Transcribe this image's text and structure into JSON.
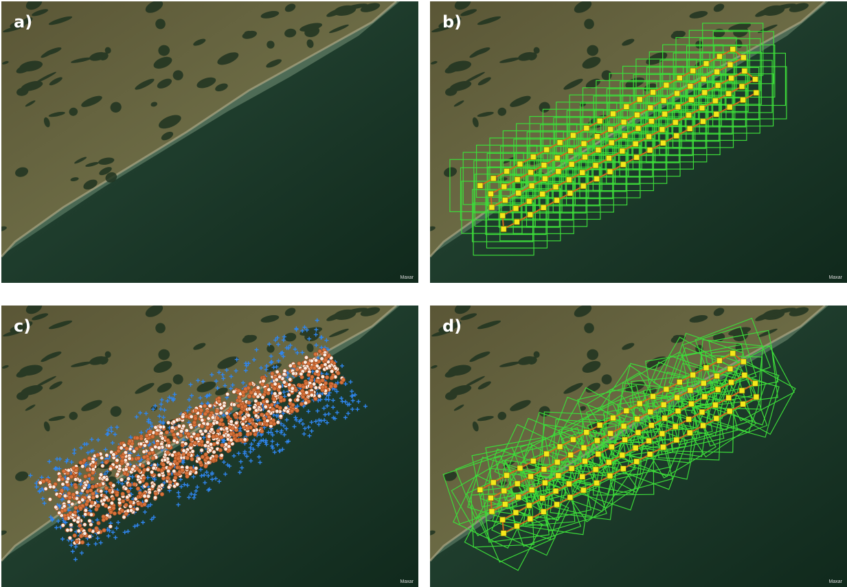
{
  "panels": [
    {
      "label": "a)",
      "attribution": "Maxar"
    },
    {
      "label": "b)",
      "attribution": "Maxar"
    },
    {
      "label": "c)",
      "attribution": "Maxar"
    },
    {
      "label": "d)",
      "attribution": "Maxar"
    }
  ]
}
